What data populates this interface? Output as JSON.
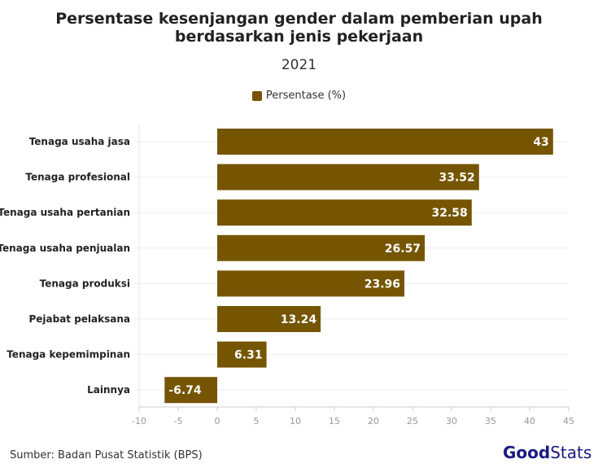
{
  "chart_data": {
    "type": "bar",
    "orientation": "horizontal",
    "title": "Persentase kesenjangan gender dalam pemberian upah berdasarkan jenis pekerjaan",
    "subtitle": "2021",
    "categories": [
      "Tenaga usaha jasa",
      "Tenaga profesional",
      "Tenaga usaha pertanian",
      "Tenaga usaha penjualan",
      "Tenaga produksi",
      "Pejabat pelaksana",
      "Tenaga kepemimpinan",
      "Lainnya"
    ],
    "series": [
      {
        "name": "Persentase (%)",
        "values": [
          43,
          33.52,
          32.58,
          26.57,
          23.96,
          13.24,
          6.31,
          -6.74
        ]
      }
    ],
    "xlim": [
      -10,
      45
    ],
    "xticks": [
      -10,
      -5,
      0,
      5,
      10,
      15,
      20,
      25,
      30,
      35,
      40,
      45
    ],
    "legend_position": "top",
    "grid": true,
    "color": "#765502"
  },
  "footer": {
    "source": "Sumber: Badan Pusat Statistik (BPS)",
    "logo_text": "GoodStats"
  }
}
